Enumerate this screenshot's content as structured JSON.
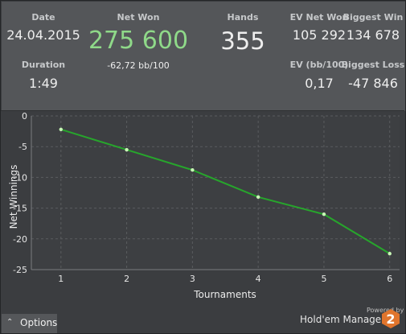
{
  "header": {
    "date_label": "Date",
    "date_value": "24.04.2015",
    "net_won_label": "Net Won",
    "net_won_value": "275 600",
    "net_won_sub": "-62,72 bb/100",
    "hands_label": "Hands",
    "hands_value": "355",
    "ev_net_won_label": "EV Net Won",
    "ev_net_won_value": "105 292",
    "biggest_win_label": "Biggest Win",
    "biggest_win_value": "134 678",
    "duration_label": "Duration",
    "duration_value": "1:49",
    "ev_bb_label": "EV (bb/100)",
    "ev_bb_value": "0,17",
    "biggest_loss_label": "Biggest Loss",
    "biggest_loss_value": "-47 846"
  },
  "colors": {
    "net_won": "#8fd989",
    "line": "#27a52c",
    "point": "#c8f7b6"
  },
  "chart_data": {
    "type": "line",
    "xlabel": "Tournaments",
    "ylabel": "Net Winnings",
    "x": [
      1,
      2,
      3,
      4,
      5,
      6
    ],
    "series": [
      {
        "values": [
          -2.2,
          -5.5,
          -8.8,
          -13.2,
          -16.0,
          -22.4
        ]
      }
    ],
    "xticks": [
      "1",
      "2",
      "3",
      "4",
      "5",
      "6"
    ],
    "yticks": [
      "0",
      "-5",
      "-10",
      "-15",
      "-20",
      "-25"
    ],
    "xlim": [
      0.55,
      6.15
    ],
    "ylim": [
      -25,
      0
    ],
    "grid": true
  },
  "footer": {
    "options_label": "Options",
    "options_icon": "chevron-up-icon",
    "powered_by": "Powered by",
    "brand": "Hold'em Manager",
    "logo_text": "2"
  }
}
